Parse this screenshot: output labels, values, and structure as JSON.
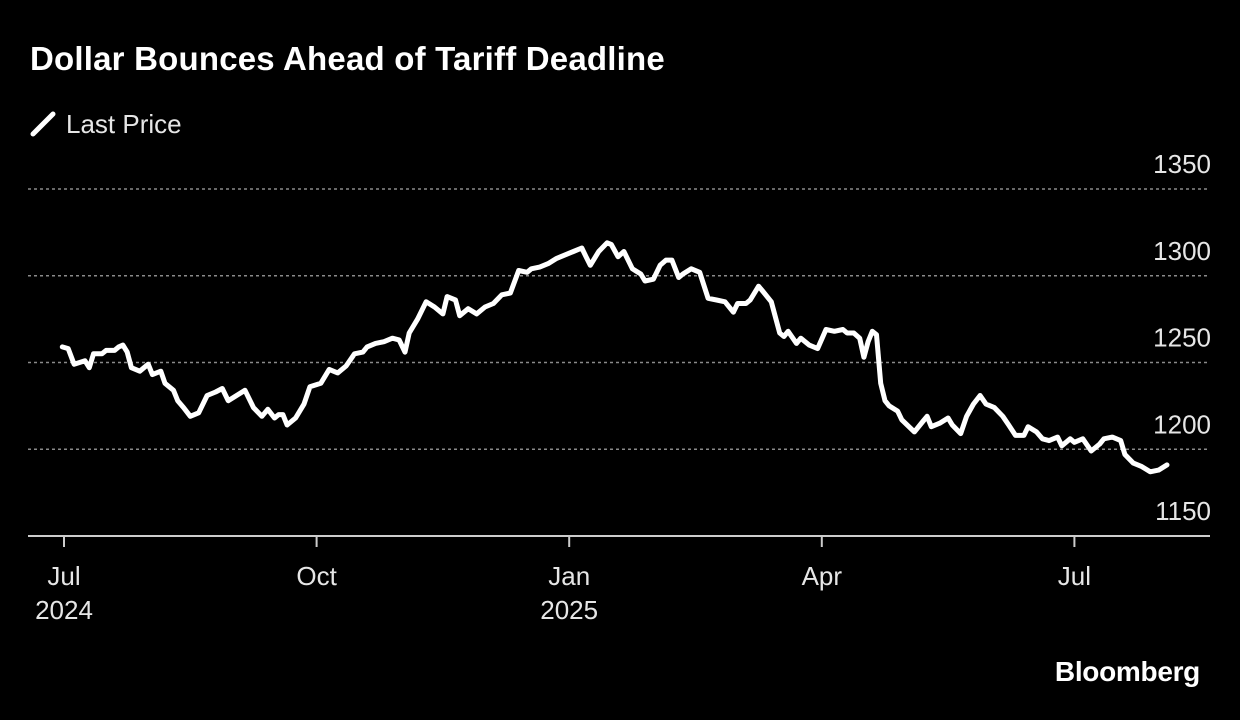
{
  "chart_data": {
    "type": "line",
    "title": "Dollar Bounces Ahead of Tariff Deadline",
    "legend": [
      "Last Price"
    ],
    "legend_placement": "top-left",
    "source": "Bloomberg",
    "xlabel": "",
    "ylabel": "",
    "ylim": [
      1150,
      1350
    ],
    "yticks": [
      1150,
      1200,
      1250,
      1300,
      1350
    ],
    "grid": true,
    "x_range_months": [
      0,
      13.2
    ],
    "x_ticks": [
      {
        "pos": 0,
        "label": "Jul",
        "sublabel": "2024"
      },
      {
        "pos": 3,
        "label": "Oct",
        "sublabel": ""
      },
      {
        "pos": 6,
        "label": "Jan",
        "sublabel": "2025"
      },
      {
        "pos": 9,
        "label": "Apr",
        "sublabel": ""
      },
      {
        "pos": 12,
        "label": "Jul",
        "sublabel": ""
      }
    ],
    "series": [
      {
        "name": "Last Price",
        "color": "#ffffff",
        "points": [
          [
            -0.02,
            1259
          ],
          [
            0.05,
            1258
          ],
          [
            0.12,
            1249
          ],
          [
            0.25,
            1251
          ],
          [
            0.3,
            1247
          ],
          [
            0.35,
            1255
          ],
          [
            0.45,
            1255
          ],
          [
            0.5,
            1257
          ],
          [
            0.6,
            1257
          ],
          [
            0.65,
            1259
          ],
          [
            0.7,
            1260
          ],
          [
            0.75,
            1256
          ],
          [
            0.8,
            1247
          ],
          [
            0.9,
            1245
          ],
          [
            1.0,
            1249
          ],
          [
            1.05,
            1243
          ],
          [
            1.15,
            1245
          ],
          [
            1.2,
            1238
          ],
          [
            1.3,
            1234
          ],
          [
            1.35,
            1228
          ],
          [
            1.42,
            1224
          ],
          [
            1.5,
            1219
          ],
          [
            1.6,
            1221
          ],
          [
            1.7,
            1231
          ],
          [
            1.8,
            1233
          ],
          [
            1.88,
            1235
          ],
          [
            1.95,
            1228
          ],
          [
            2.05,
            1231
          ],
          [
            2.15,
            1234
          ],
          [
            2.25,
            1224
          ],
          [
            2.35,
            1219
          ],
          [
            2.42,
            1223
          ],
          [
            2.5,
            1218
          ],
          [
            2.55,
            1220
          ],
          [
            2.6,
            1220
          ],
          [
            2.65,
            1214
          ],
          [
            2.75,
            1218
          ],
          [
            2.85,
            1226
          ],
          [
            2.92,
            1236
          ],
          [
            3.05,
            1238
          ],
          [
            3.15,
            1246
          ],
          [
            3.25,
            1244
          ],
          [
            3.35,
            1248
          ],
          [
            3.45,
            1255
          ],
          [
            3.55,
            1256
          ],
          [
            3.6,
            1259
          ],
          [
            3.7,
            1261
          ],
          [
            3.8,
            1262
          ],
          [
            3.9,
            1264
          ],
          [
            3.98,
            1263
          ],
          [
            4.05,
            1256
          ],
          [
            4.1,
            1267
          ],
          [
            4.2,
            1275
          ],
          [
            4.3,
            1285
          ],
          [
            4.4,
            1282
          ],
          [
            4.5,
            1278
          ],
          [
            4.55,
            1288
          ],
          [
            4.65,
            1286
          ],
          [
            4.7,
            1277
          ],
          [
            4.8,
            1281
          ],
          [
            4.9,
            1278
          ],
          [
            5.0,
            1282
          ],
          [
            5.1,
            1284
          ],
          [
            5.2,
            1289
          ],
          [
            5.3,
            1290
          ],
          [
            5.4,
            1303
          ],
          [
            5.5,
            1302
          ],
          [
            5.55,
            1304
          ],
          [
            5.65,
            1305
          ],
          [
            5.75,
            1307
          ],
          [
            5.85,
            1310
          ],
          [
            5.95,
            1312
          ],
          [
            6.05,
            1314
          ],
          [
            6.15,
            1316
          ],
          [
            6.2,
            1311
          ],
          [
            6.25,
            1306
          ],
          [
            6.35,
            1314
          ],
          [
            6.45,
            1319
          ],
          [
            6.5,
            1318
          ],
          [
            6.58,
            1311
          ],
          [
            6.65,
            1314
          ],
          [
            6.75,
            1304
          ],
          [
            6.85,
            1301
          ],
          [
            6.9,
            1297
          ],
          [
            7.0,
            1298
          ],
          [
            7.08,
            1306
          ],
          [
            7.15,
            1309
          ],
          [
            7.22,
            1309
          ],
          [
            7.3,
            1299
          ],
          [
            7.35,
            1301
          ],
          [
            7.45,
            1304
          ],
          [
            7.55,
            1302
          ],
          [
            7.65,
            1287
          ],
          [
            7.75,
            1286
          ],
          [
            7.85,
            1285
          ],
          [
            7.95,
            1279
          ],
          [
            8.0,
            1284
          ],
          [
            8.1,
            1284
          ],
          [
            8.15,
            1286
          ],
          [
            8.25,
            1294
          ],
          [
            8.3,
            1291
          ],
          [
            8.4,
            1285
          ],
          [
            8.5,
            1267
          ],
          [
            8.55,
            1265
          ],
          [
            8.6,
            1268
          ],
          [
            8.7,
            1261
          ],
          [
            8.75,
            1264
          ],
          [
            8.85,
            1260
          ],
          [
            8.95,
            1258
          ],
          [
            9.05,
            1269
          ],
          [
            9.15,
            1268
          ],
          [
            9.25,
            1269
          ],
          [
            9.3,
            1267
          ],
          [
            9.38,
            1267
          ],
          [
            9.45,
            1264
          ],
          [
            9.5,
            1253
          ],
          [
            9.55,
            1262
          ],
          [
            9.6,
            1268
          ],
          [
            9.65,
            1266
          ],
          [
            9.7,
            1238
          ],
          [
            9.75,
            1228
          ],
          [
            9.8,
            1225
          ],
          [
            9.9,
            1222
          ],
          [
            9.95,
            1217
          ],
          [
            10.1,
            1210
          ],
          [
            10.2,
            1216
          ],
          [
            10.25,
            1219
          ],
          [
            10.3,
            1213
          ],
          [
            10.4,
            1215
          ],
          [
            10.5,
            1218
          ],
          [
            10.55,
            1214
          ],
          [
            10.65,
            1209
          ],
          [
            10.72,
            1219
          ],
          [
            10.8,
            1226
          ],
          [
            10.88,
            1231
          ],
          [
            10.95,
            1226
          ],
          [
            11.05,
            1224
          ],
          [
            11.15,
            1219
          ],
          [
            11.22,
            1214
          ],
          [
            11.3,
            1208
          ],
          [
            11.4,
            1208
          ],
          [
            11.45,
            1213
          ],
          [
            11.55,
            1210
          ],
          [
            11.62,
            1206
          ],
          [
            11.7,
            1205
          ],
          [
            11.8,
            1207
          ],
          [
            11.85,
            1202
          ],
          [
            11.95,
            1206
          ],
          [
            12.0,
            1204
          ],
          [
            12.1,
            1206
          ],
          [
            12.2,
            1199
          ],
          [
            12.3,
            1203
          ],
          [
            12.35,
            1206
          ],
          [
            12.45,
            1207
          ],
          [
            12.55,
            1205
          ],
          [
            12.6,
            1197
          ],
          [
            12.7,
            1192
          ],
          [
            12.8,
            1190
          ],
          [
            12.9,
            1187
          ],
          [
            13.0,
            1188
          ],
          [
            13.1,
            1191
          ]
        ]
      }
    ]
  }
}
